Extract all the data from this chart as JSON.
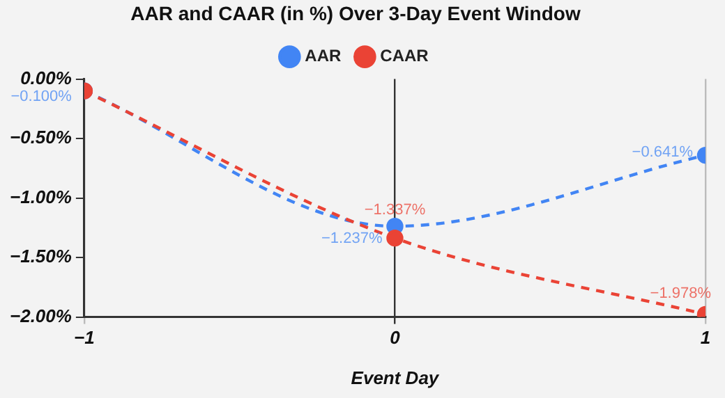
{
  "chart_data": {
    "type": "line",
    "title": "AAR and CAAR (in %) Over 3-Day Event Window",
    "xlabel": "Event Day",
    "x": [
      -1,
      0,
      1
    ],
    "xlim": [
      -1,
      1
    ],
    "xticks": [
      {
        "value": -1,
        "label": "−1"
      },
      0,
      1
    ],
    "ylim": [
      -2,
      0
    ],
    "yticks": [
      {
        "value": -2,
        "label": "−2.00%"
      },
      {
        "value": -1.5,
        "label": "−1.50%"
      },
      {
        "value": -1,
        "label": "−1.00%"
      },
      {
        "value": -0.5,
        "label": "−0.50%"
      },
      {
        "value": 0,
        "label": "0.00%"
      }
    ],
    "grid": "x",
    "legend": "top",
    "marker": "circle",
    "line_style": "dashed",
    "series": [
      {
        "name": "AAR",
        "color": "#4285f4",
        "values": [
          -0.1,
          -1.237,
          -0.641
        ],
        "value_labels": [
          "−0.100%",
          "−1.237%",
          "−0.641%"
        ]
      },
      {
        "name": "CAAR",
        "color": "#ea4335",
        "values": [
          -0.1,
          -1.337,
          -1.978
        ],
        "value_labels": [
          null,
          "−1.337%",
          "−1.978%"
        ]
      }
    ]
  }
}
